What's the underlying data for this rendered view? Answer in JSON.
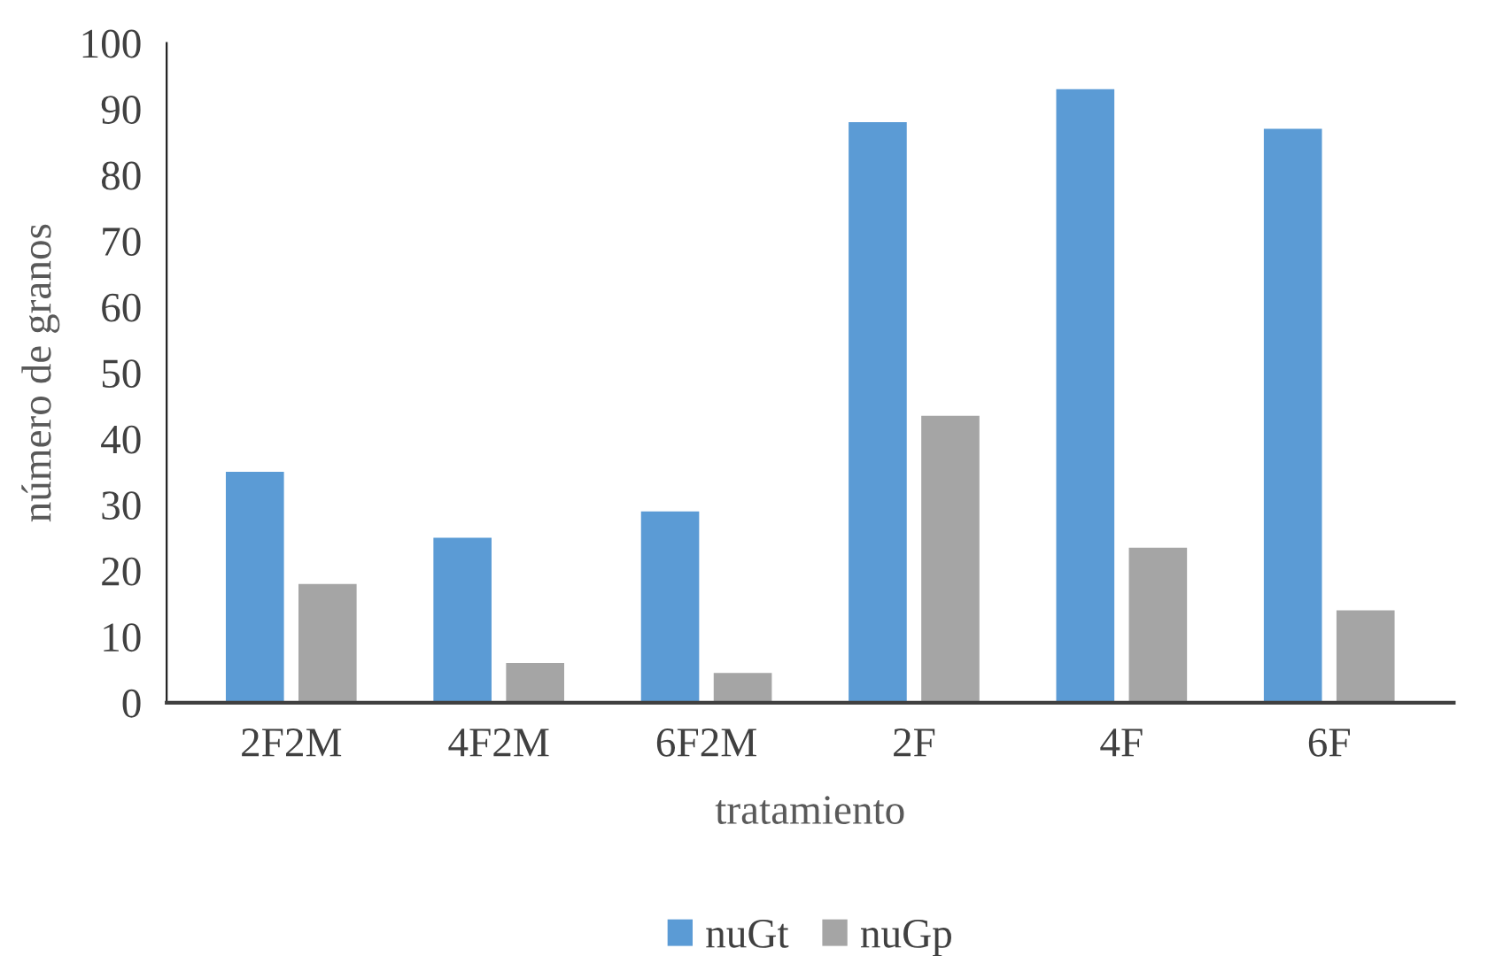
{
  "chart_data": {
    "type": "bar",
    "xlabel": "tratamiento",
    "ylabel": "número de granos",
    "categories": [
      "2F2M",
      "4F2M",
      "6F2M",
      "2F",
      "4F",
      "6F"
    ],
    "series": [
      {
        "name": "nuGt",
        "color": "#5b9bd5",
        "values": [
          35,
          25,
          29,
          88,
          93,
          87
        ]
      },
      {
        "name": "nuGp",
        "color": "#a5a5a5",
        "values": [
          18,
          6,
          4.5,
          43.5,
          23.5,
          14
        ]
      }
    ],
    "ylim": [
      0,
      100
    ],
    "yticks": [
      0,
      10,
      20,
      30,
      40,
      50,
      60,
      70,
      80,
      90,
      100
    ],
    "grid": false,
    "legend": "bottom"
  }
}
